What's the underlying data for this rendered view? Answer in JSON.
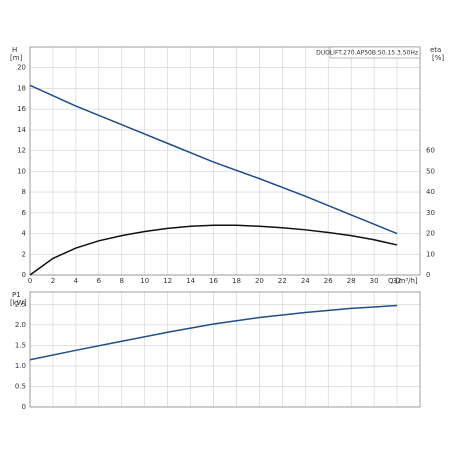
{
  "chart_data": [
    {
      "type": "line",
      "ylabel": "H",
      "yunit": "[m]",
      "y2label": "eta",
      "y2unit": "[%]",
      "xlabel": "Q [m³/h]",
      "title": "DUOLIFT.270.AP50B.50.15.3.50Hz",
      "xlim": [
        0,
        34
      ],
      "xticks": [
        0,
        2,
        4,
        6,
        8,
        10,
        12,
        14,
        16,
        18,
        20,
        22,
        24,
        26,
        28,
        30,
        32
      ],
      "ylim": [
        0,
        22
      ],
      "yticks": [
        0,
        2,
        4,
        6,
        8,
        10,
        12,
        14,
        16,
        18,
        20
      ],
      "y2lim": [
        0,
        110
      ],
      "y2ticks": [
        0,
        10,
        20,
        30,
        40,
        50,
        60
      ],
      "grid": true,
      "series": [
        {
          "name": "H",
          "color": "#1f4e8c",
          "x": [
            0,
            4,
            8,
            12,
            16,
            20,
            24,
            28,
            32
          ],
          "values": [
            18.3,
            16.3,
            14.5,
            12.7,
            10.9,
            9.3,
            7.6,
            5.8,
            4.0
          ]
        },
        {
          "name": "eta",
          "color": "#111111",
          "axis": "y2",
          "x": [
            0,
            2,
            4,
            6,
            8,
            10,
            12,
            14,
            16,
            18,
            20,
            22,
            24,
            26,
            28,
            30,
            32
          ],
          "values": [
            0,
            8,
            13,
            16.5,
            19,
            21,
            22.5,
            23.5,
            24,
            24,
            23.5,
            22.8,
            21.8,
            20.5,
            19,
            17,
            14.5
          ]
        }
      ]
    },
    {
      "type": "line",
      "ylabel": "P1",
      "yunit": "[kW]",
      "xlim": [
        0,
        34
      ],
      "xticks": [
        0,
        2,
        4,
        6,
        8,
        10,
        12,
        14,
        16,
        18,
        20,
        22,
        24,
        26,
        28,
        30,
        32
      ],
      "ylim": [
        0,
        2.8
      ],
      "yticks": [
        0,
        0.5,
        {
          "value": 1,
          "label": "1.0"
        },
        1.5,
        {
          "value": 2,
          "label": "2.0"
        },
        2.5
      ],
      "grid": true,
      "series": [
        {
          "name": "P1",
          "color": "#1f4e8c",
          "x": [
            0,
            4,
            8,
            12,
            16,
            20,
            24,
            28,
            32
          ],
          "values": [
            1.15,
            1.38,
            1.6,
            1.82,
            2.02,
            2.18,
            2.3,
            2.4,
            2.47
          ]
        }
      ]
    }
  ]
}
